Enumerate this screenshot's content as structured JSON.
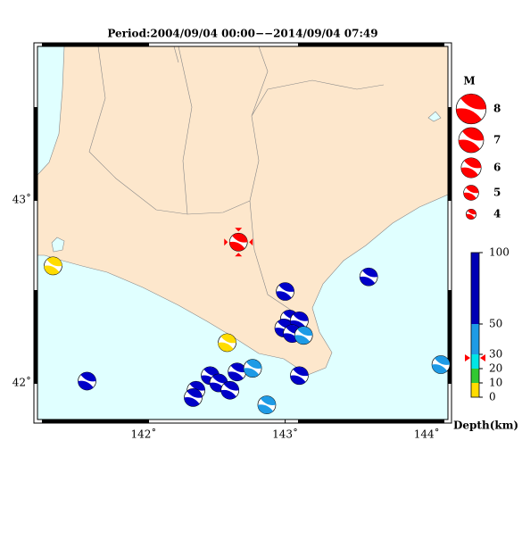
{
  "title": "Period:2004/09/04 00:00−−2014/09/04 07:49",
  "map": {
    "xlim": [
      141.25,
      144.15
    ],
    "ylim": [
      41.8,
      43.84
    ],
    "xticks": [
      {
        "value": 142,
        "label": "142˚"
      },
      {
        "value": 143,
        "label": "143˚"
      },
      {
        "value": 144,
        "label": "144˚"
      }
    ],
    "yticks": [
      {
        "value": 43,
        "label": "43˚"
      },
      {
        "value": 42,
        "label": "42˚"
      }
    ],
    "land_color": "#fde7cc",
    "sea_color": "#e0ffff"
  },
  "events": [
    {
      "lon": 142.67,
      "lat": 42.77,
      "color": "#ff0000"
    },
    {
      "lon": 141.36,
      "lat": 42.64,
      "color": "#ffdc00"
    },
    {
      "lon": 143.59,
      "lat": 42.58,
      "color": "#0000c8"
    },
    {
      "lon": 143.0,
      "lat": 42.5,
      "color": "#0000c8"
    },
    {
      "lon": 143.03,
      "lat": 42.35,
      "color": "#0000c8"
    },
    {
      "lon": 142.99,
      "lat": 42.3,
      "color": "#0000c8"
    },
    {
      "lon": 143.1,
      "lat": 42.34,
      "color": "#0000c8"
    },
    {
      "lon": 143.05,
      "lat": 42.27,
      "color": "#0000c8"
    },
    {
      "lon": 143.13,
      "lat": 42.26,
      "color": "#1e9be6"
    },
    {
      "lon": 142.59,
      "lat": 42.22,
      "color": "#ffdc00"
    },
    {
      "lon": 141.6,
      "lat": 42.01,
      "color": "#0000c8"
    },
    {
      "lon": 142.47,
      "lat": 42.04,
      "color": "#0000c8"
    },
    {
      "lon": 142.37,
      "lat": 41.96,
      "color": "#0000c8"
    },
    {
      "lon": 142.35,
      "lat": 41.92,
      "color": "#0000c8"
    },
    {
      "lon": 142.53,
      "lat": 42.0,
      "color": "#0000c8"
    },
    {
      "lon": 142.61,
      "lat": 41.96,
      "color": "#0000c8"
    },
    {
      "lon": 142.66,
      "lat": 42.06,
      "color": "#0000c8"
    },
    {
      "lon": 142.77,
      "lat": 42.08,
      "color": "#1e9be6"
    },
    {
      "lon": 143.1,
      "lat": 42.04,
      "color": "#0000c8"
    },
    {
      "lon": 142.87,
      "lat": 41.88,
      "color": "#1e9be6"
    },
    {
      "lon": 144.1,
      "lat": 42.1,
      "color": "#1e9be6"
    }
  ],
  "magnitude_legend": {
    "title": "M",
    "values": [
      8,
      7,
      6,
      5,
      4
    ],
    "color": "#ff0000"
  },
  "depth_scale": {
    "label": "Depth(km)",
    "ticks": [
      0,
      10,
      20,
      30,
      50,
      100
    ],
    "colors": [
      "#ffdc00",
      "#32c832",
      "#00e6e6",
      "#1e9be6",
      "#0000b4"
    ]
  }
}
